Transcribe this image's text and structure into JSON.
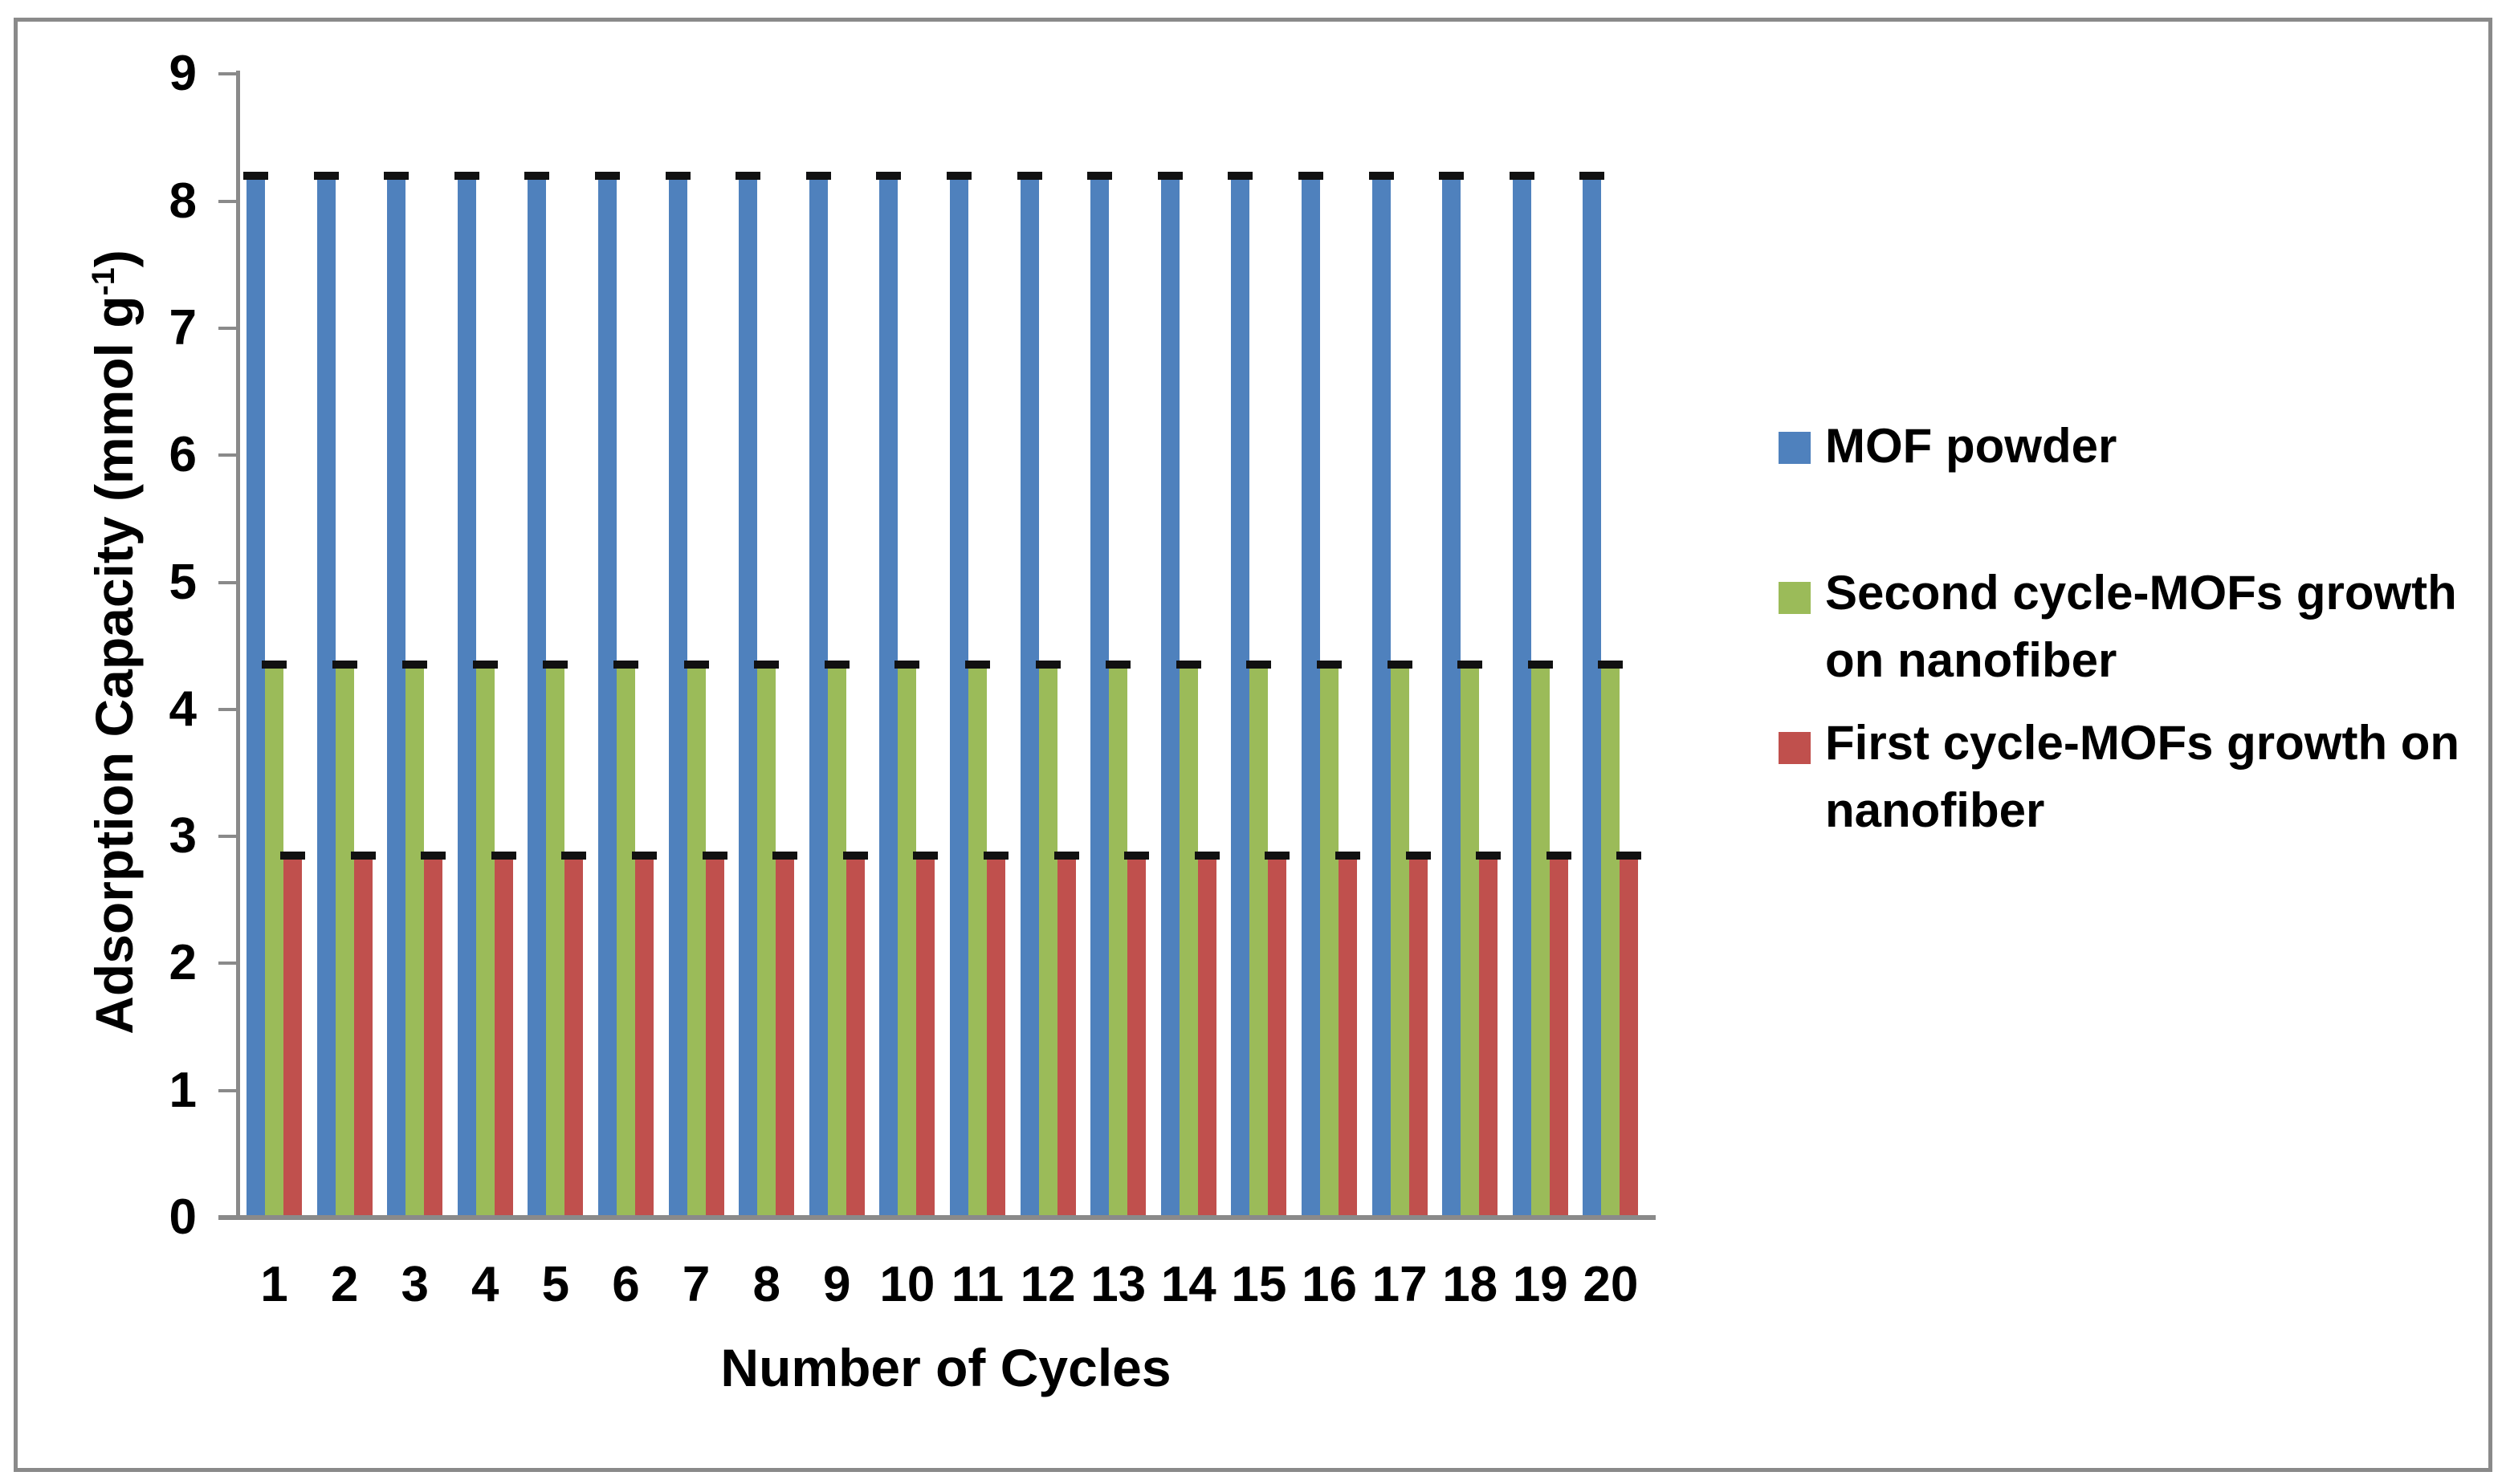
{
  "figure": {
    "background": "#ffffff",
    "border_color": "#8a8a8a",
    "axis_color": "#8a8a8a",
    "text_color": "#000000"
  },
  "chart_data": {
    "type": "bar",
    "title": "",
    "xlabel": "Number of Cycles",
    "ylabel": "Adsorption Capacity (mmol g⁻¹)",
    "ylabel_parts": {
      "main": "Adsorption Capacity (mmol g",
      "sup": "-1",
      "close": ")"
    },
    "categories": [
      1,
      2,
      3,
      4,
      5,
      6,
      7,
      8,
      9,
      10,
      11,
      12,
      13,
      14,
      15,
      16,
      17,
      18,
      19,
      20
    ],
    "y_ticks": [
      0,
      1,
      2,
      3,
      4,
      5,
      6,
      7,
      8,
      9
    ],
    "ylim": [
      0,
      9
    ],
    "grid": false,
    "legend_position": "right",
    "error_caps": true,
    "cap_color": "#111111",
    "series": [
      {
        "name": "MOF powder",
        "color": "#4F81BD",
        "values": [
          8.2,
          8.2,
          8.2,
          8.2,
          8.2,
          8.2,
          8.2,
          8.2,
          8.2,
          8.2,
          8.2,
          8.2,
          8.2,
          8.2,
          8.2,
          8.2,
          8.2,
          8.2,
          8.2,
          8.2
        ]
      },
      {
        "name": "Second cycle-MOFs growth on nanofiber",
        "color": "#9BBB59",
        "values": [
          4.35,
          4.35,
          4.35,
          4.35,
          4.35,
          4.35,
          4.35,
          4.35,
          4.35,
          4.35,
          4.35,
          4.35,
          4.35,
          4.35,
          4.35,
          4.35,
          4.35,
          4.35,
          4.35,
          4.35
        ]
      },
      {
        "name": "First cycle-MOFs growth on nanofiber",
        "color": "#C0504D",
        "values": [
          2.85,
          2.85,
          2.85,
          2.85,
          2.85,
          2.85,
          2.85,
          2.85,
          2.85,
          2.85,
          2.85,
          2.85,
          2.85,
          2.85,
          2.85,
          2.85,
          2.85,
          2.85,
          2.85,
          2.85
        ]
      }
    ],
    "legend": [
      {
        "color": "#4F81BD",
        "line1": "MOF powder",
        "line2": ""
      },
      {
        "color": "#9BBB59",
        "line1": "Second cycle-MOFs growth",
        "line2": "on nanofiber"
      },
      {
        "color": "#C0504D",
        "line1": "First cycle-MOFs growth on",
        "line2": "nanofiber"
      }
    ]
  }
}
